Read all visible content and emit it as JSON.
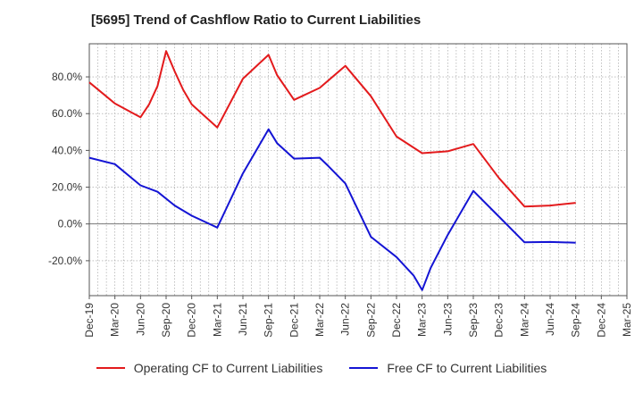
{
  "chart_data": {
    "type": "line",
    "title": "[5695]  Trend of Cashflow Ratio to Current Liabilities",
    "xlabel": "",
    "ylabel": "",
    "x_ticks": [
      "Dec-19",
      "Mar-20",
      "Jun-20",
      "Sep-20",
      "Dec-20",
      "Mar-21",
      "Jun-21",
      "Sep-21",
      "Dec-21",
      "Mar-22",
      "Jun-22",
      "Sep-22",
      "Dec-22",
      "Mar-23",
      "Jun-23",
      "Sep-23",
      "Dec-23",
      "Mar-24",
      "Jun-24",
      "Sep-24",
      "Dec-24",
      "Mar-25"
    ],
    "y_ticks": [
      {
        "value": 80,
        "label": "80.0%"
      },
      {
        "value": 60,
        "label": "60.0%"
      },
      {
        "value": 40,
        "label": "40.0%"
      },
      {
        "value": 20,
        "label": "20.0%"
      },
      {
        "value": 0,
        "label": "0.0%"
      },
      {
        "value": -20,
        "label": "-20.0%"
      }
    ],
    "ylim": [
      -39,
      98
    ],
    "grid": true,
    "legend_position": "bottom",
    "series": [
      {
        "name": "Operating CF to Current Liabilities",
        "color": "#e31a1c",
        "points": [
          {
            "x": "Dec-19",
            "y": 77
          },
          {
            "x": "Mar-20",
            "y": 65.5
          },
          {
            "x": "Jun-20",
            "y": 58
          },
          {
            "x": "Jul-20",
            "y": 65
          },
          {
            "x": "Aug-20",
            "y": 75
          },
          {
            "x": "Sep-20",
            "y": 94
          },
          {
            "x": "Oct-20",
            "y": 83
          },
          {
            "x": "Nov-20",
            "y": 73
          },
          {
            "x": "Dec-20",
            "y": 65
          },
          {
            "x": "Mar-21",
            "y": 52.5
          },
          {
            "x": "Jun-21",
            "y": 79
          },
          {
            "x": "Sep-21",
            "y": 92
          },
          {
            "x": "Oct-21",
            "y": 81
          },
          {
            "x": "Dec-21",
            "y": 67.5
          },
          {
            "x": "Mar-22",
            "y": 74
          },
          {
            "x": "Jun-22",
            "y": 86
          },
          {
            "x": "Sep-22",
            "y": 69.5
          },
          {
            "x": "Dec-22",
            "y": 47.5
          },
          {
            "x": "Mar-23",
            "y": 38.5
          },
          {
            "x": "Jun-23",
            "y": 39.5
          },
          {
            "x": "Sep-23",
            "y": 43.5
          },
          {
            "x": "Dec-23",
            "y": 25
          },
          {
            "x": "Mar-24",
            "y": 9.5
          },
          {
            "x": "Jun-24",
            "y": 10
          },
          {
            "x": "Sep-24",
            "y": 11.5
          }
        ]
      },
      {
        "name": "Free CF to Current Liabilities",
        "color": "#1414d4",
        "points": [
          {
            "x": "Dec-19",
            "y": 36
          },
          {
            "x": "Mar-20",
            "y": 32.5
          },
          {
            "x": "Jun-20",
            "y": 21
          },
          {
            "x": "Aug-20",
            "y": 17.5
          },
          {
            "x": "Oct-20",
            "y": 10
          },
          {
            "x": "Dec-20",
            "y": 4.5
          },
          {
            "x": "Mar-21",
            "y": -2
          },
          {
            "x": "Jun-21",
            "y": 27.5
          },
          {
            "x": "Sep-21",
            "y": 51.5
          },
          {
            "x": "Oct-21",
            "y": 44
          },
          {
            "x": "Dec-21",
            "y": 35.5
          },
          {
            "x": "Mar-22",
            "y": 36
          },
          {
            "x": "Apr-22",
            "y": 31.5
          },
          {
            "x": "Jun-22",
            "y": 22
          },
          {
            "x": "Sep-22",
            "y": -7
          },
          {
            "x": "Dec-22",
            "y": -18
          },
          {
            "x": "Feb-23",
            "y": -28
          },
          {
            "x": "Mar-23",
            "y": -36
          },
          {
            "x": "Apr-23",
            "y": -24
          },
          {
            "x": "Jun-23",
            "y": -6
          },
          {
            "x": "Sep-23",
            "y": 18
          },
          {
            "x": "Dec-23",
            "y": 4
          },
          {
            "x": "Mar-24",
            "y": -10
          },
          {
            "x": "Jun-24",
            "y": -9.8
          },
          {
            "x": "Sep-24",
            "y": -10.2
          }
        ]
      }
    ]
  }
}
